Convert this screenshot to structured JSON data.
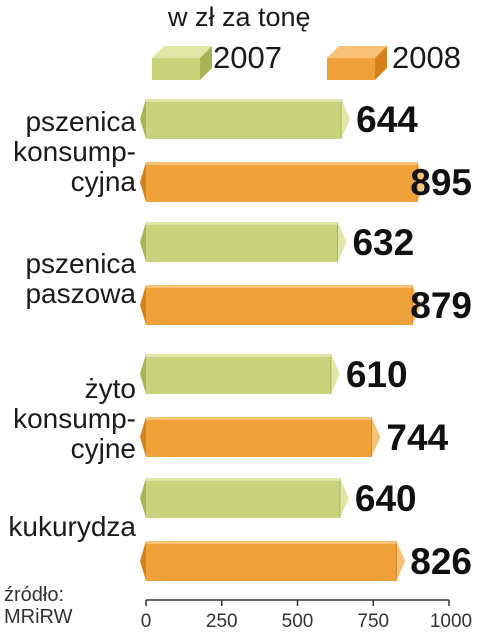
{
  "chart_data": {
    "type": "bar",
    "unit_label": "w zł za tonę",
    "categories": [
      "pszenica\nkonsump-\ncyjna",
      "pszenica\npaszowa",
      "żyto\nkonsump-\ncyjne",
      "kukurydza"
    ],
    "series": [
      {
        "name": "2007",
        "values": [
          644,
          632,
          610,
          640
        ],
        "color": "#c8d37c"
      },
      {
        "name": "2008",
        "values": [
          895,
          879,
          744,
          826
        ],
        "color": "#f0a23a"
      }
    ],
    "xlim": [
      0,
      1000
    ],
    "x_ticks": [
      "0",
      "250",
      "500",
      "750",
      "1000"
    ],
    "source": "źródło:\nMRiRW",
    "legend_position": "top"
  }
}
